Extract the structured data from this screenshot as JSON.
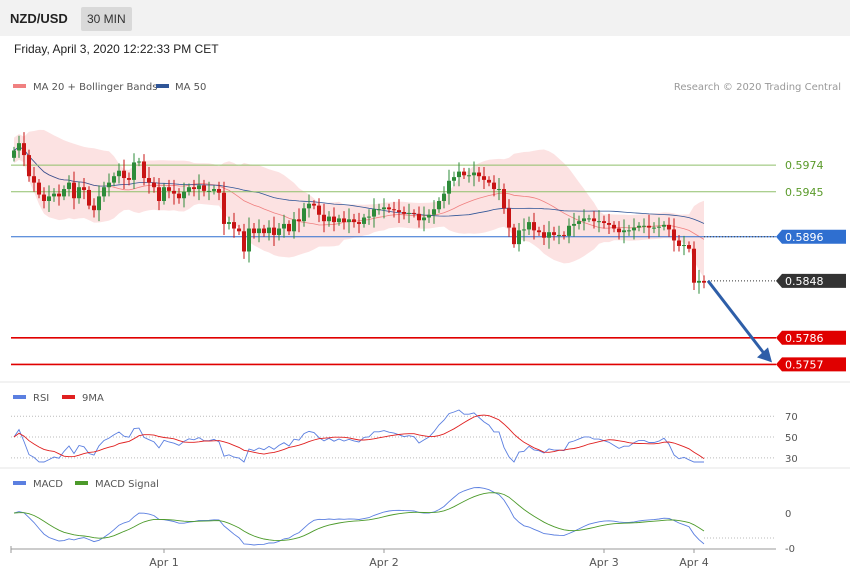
{
  "header": {
    "pair": "NZD/USD",
    "timeframe": "30 MIN",
    "datetime": "Friday, April 3, 2020 12:22:33 PM CET"
  },
  "legend_main": [
    {
      "name": "MA 20 + Bollinger Bands",
      "color": "#f08080"
    },
    {
      "name": "MA 50",
      "color": "#2f5597"
    }
  ],
  "credit": "Research © 2020 Trading Central",
  "legend_rsi": [
    {
      "name": "RSI",
      "color": "#5b7fe0"
    },
    {
      "name": "9MA",
      "color": "#e02020"
    }
  ],
  "legend_macd": [
    {
      "name": "MACD",
      "color": "#5b7fe0"
    },
    {
      "name": "MACD Signal",
      "color": "#4c9a2a"
    }
  ],
  "colors": {
    "up": "#2e8b3a",
    "down": "#c81414",
    "resistance": "#8fbf6a",
    "pivot": "#2f6fd0",
    "support": "#e00000",
    "arrow": "#2e5ea8"
  },
  "chart_data": [
    {
      "type": "candlestick",
      "ylim": [
        0.574,
        0.6045
      ],
      "x_ticks": [
        "Apr 1",
        "Apr 2",
        "Apr 3",
        "Apr 4"
      ],
      "levels": [
        {
          "value": 0.5974,
          "label": "0.5974",
          "kind": "resistance"
        },
        {
          "value": 0.5945,
          "label": "0.5945",
          "kind": "resistance"
        },
        {
          "value": 0.5896,
          "label": "0.5896",
          "kind": "pivot"
        },
        {
          "value": 0.5848,
          "label": "0.5848",
          "kind": "last"
        },
        {
          "value": 0.5786,
          "label": "0.5786",
          "kind": "support"
        },
        {
          "value": 0.5757,
          "label": "0.5757",
          "kind": "support"
        }
      ],
      "arrow": {
        "from": 0.5848,
        "to": 0.5757
      },
      "close": [
        0.599,
        0.5998,
        0.5985,
        0.5962,
        0.5955,
        0.5942,
        0.5935,
        0.594,
        0.5943,
        0.594,
        0.5948,
        0.5955,
        0.5938,
        0.595,
        0.5947,
        0.593,
        0.5925,
        0.594,
        0.595,
        0.5955,
        0.5962,
        0.5968,
        0.596,
        0.5958,
        0.5977,
        0.5978,
        0.596,
        0.5955,
        0.595,
        0.5935,
        0.595,
        0.5946,
        0.5943,
        0.5938,
        0.5945,
        0.595,
        0.5948,
        0.5952,
        0.5946,
        0.5946,
        0.5948,
        0.5944,
        0.591,
        0.5912,
        0.5905,
        0.5902,
        0.588,
        0.5905,
        0.59,
        0.5905,
        0.59,
        0.5906,
        0.5898,
        0.5905,
        0.591,
        0.5902,
        0.5915,
        0.5913,
        0.5927,
        0.5932,
        0.593,
        0.592,
        0.5913,
        0.5918,
        0.5912,
        0.5916,
        0.5912,
        0.5915,
        0.5912,
        0.591,
        0.5917,
        0.5918,
        0.5926,
        0.5926,
        0.5928,
        0.5926,
        0.5925,
        0.5923,
        0.5921,
        0.5922,
        0.5921,
        0.5914,
        0.5917,
        0.592,
        0.5926,
        0.5935,
        0.5943,
        0.5957,
        0.5961,
        0.5967,
        0.5963,
        0.5963,
        0.5966,
        0.5962,
        0.5958,
        0.5955,
        0.5948,
        0.5948,
        0.5927,
        0.5906,
        0.5888,
        0.5903,
        0.5904,
        0.5912,
        0.5903,
        0.5901,
        0.5895,
        0.5901,
        0.5898,
        0.5898,
        0.5897,
        0.5908,
        0.591,
        0.5913,
        0.5916,
        0.5916,
        0.5913,
        0.5913,
        0.5911,
        0.5909,
        0.5905,
        0.5901,
        0.5903,
        0.5903,
        0.5906,
        0.5908,
        0.5908,
        0.5906,
        0.5906,
        0.5907,
        0.5909,
        0.5904,
        0.5892,
        0.5886,
        0.5887,
        0.5883,
        0.5846,
        0.5848,
        0.5846
      ],
      "rsi": {
        "ylim": [
          26,
          76
        ],
        "ticks": [
          30,
          50,
          70
        ]
      },
      "macd": {
        "ticks": [
          "0",
          "-0"
        ]
      }
    }
  ]
}
